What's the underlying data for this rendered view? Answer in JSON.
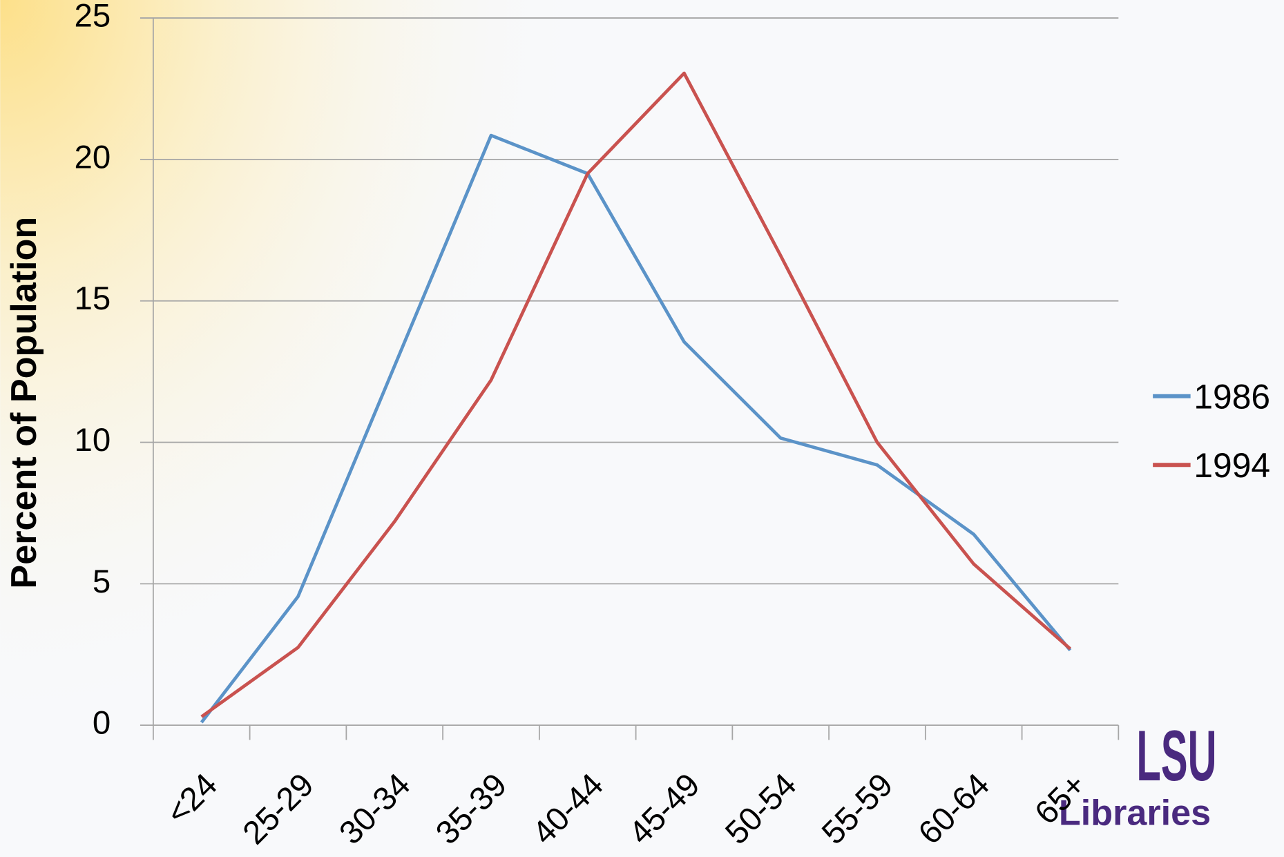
{
  "chart_data": {
    "type": "line",
    "ylabel": "Percent of Population",
    "categories": [
      "<24",
      "25-29",
      "30-34",
      "35-39",
      "40-44",
      "45-49",
      "50-54",
      "55-59",
      "60-64",
      "65+"
    ],
    "series": [
      {
        "name": "1986",
        "color": "#5b93c8",
        "values": [
          0.1,
          4.55,
          12.7,
          20.85,
          19.5,
          13.55,
          10.15,
          9.2,
          6.75,
          2.65
        ]
      },
      {
        "name": "1994",
        "color": "#c9524f",
        "values": [
          0.3,
          2.75,
          7.2,
          12.2,
          19.5,
          23.05,
          16.6,
          10.0,
          5.7,
          2.7
        ]
      }
    ],
    "ylim": [
      0,
      25
    ],
    "yticks": [
      0,
      5,
      10,
      15,
      20,
      25
    ],
    "grid": true,
    "legend": "right"
  },
  "logo": {
    "mark": "LSU",
    "text": "Libraries"
  }
}
